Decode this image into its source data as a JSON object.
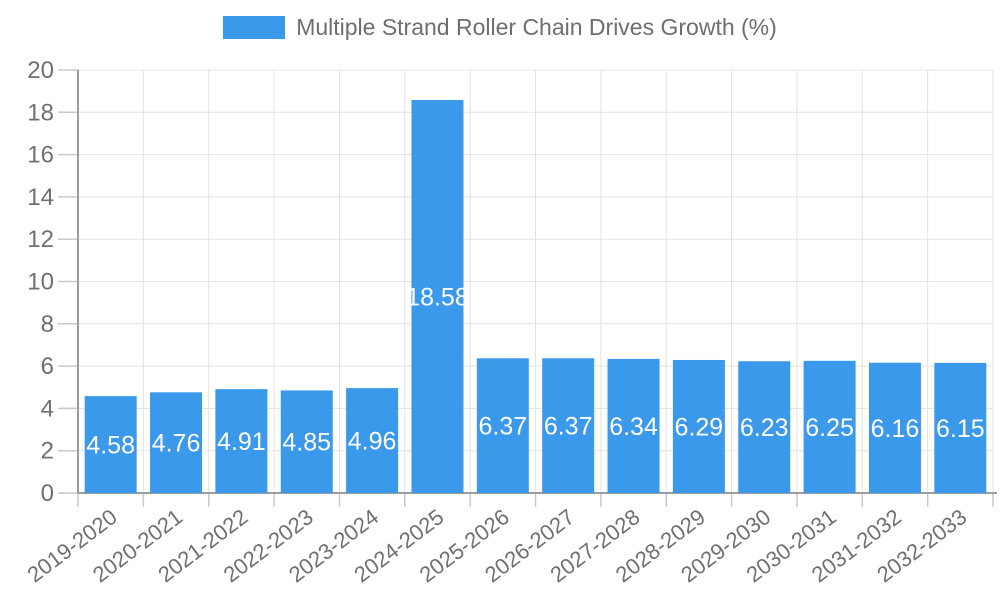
{
  "chart_data": {
    "type": "bar",
    "title": "Multiple Strand Roller Chain Drives Growth (%)",
    "categories": [
      "2019-2020",
      "2020-2021",
      "2021-2022",
      "2022-2023",
      "2023-2024",
      "2024-2025",
      "2025-2026",
      "2026-2027",
      "2027-2028",
      "2028-2029",
      "2029-2030",
      "2030-2031",
      "2031-2032",
      "2032-2033"
    ],
    "values": [
      4.58,
      4.76,
      4.91,
      4.85,
      4.96,
      18.58,
      6.37,
      6.37,
      6.34,
      6.29,
      6.23,
      6.25,
      6.16,
      6.15
    ],
    "xlabel": "",
    "ylabel": "",
    "ylim": [
      0,
      20
    ],
    "ytick_step": 2,
    "yticks": [
      0,
      2,
      4,
      6,
      8,
      10,
      12,
      14,
      16,
      18,
      20
    ],
    "grid": true,
    "legend_position": "top",
    "value_label_position": "inside-center",
    "value_label_decimals": 2,
    "x_label_rotation_deg": -37,
    "colors": {
      "bar": "#3b99ec",
      "bar_value_label": "#ffffff",
      "axis_text": "#707070",
      "title_text": "#6e6e6e",
      "grid_line": "#e3e3e3",
      "tick_line": "#c9c9c9",
      "axis_line": "#9c9c9c",
      "background": "#ffffff"
    }
  }
}
